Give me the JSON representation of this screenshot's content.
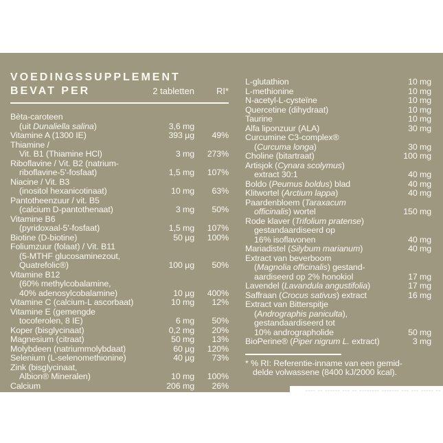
{
  "header": {
    "title_line1": "VOEDINGSSUPPLEMENT",
    "title_line2": "BEVAT PER",
    "col_amount": "2 tabletten",
    "col_ri": "RI*"
  },
  "left_rows": [
    {
      "lines": [
        "Bèta-caroteen",
        "(uit *Dunaliella salina*)"
      ],
      "amount": "3,6 mg",
      "ri": ""
    },
    {
      "lines": [
        "Vitamine A (1300 IE)"
      ],
      "amount": "393 µg",
      "ri": "49%"
    },
    {
      "lines": [
        "Thiamine /",
        "Vit. B1 (Thiamine HCl)"
      ],
      "amount": "3 mg",
      "ri": "273%"
    },
    {
      "lines": [
        "Riboflavine / Vit. B2 (natrium-",
        "riboflavine-5'-fosfaat)"
      ],
      "amount": "1,5 mg",
      "ri": "107%"
    },
    {
      "lines": [
        "Niacine / Vit. B3",
        "(inositol hexanicotinaat)"
      ],
      "amount": "10 mg",
      "ri": "63%"
    },
    {
      "lines": [
        "Pantotheenzuur / vit. B5",
        "(calcium D-pantothenaat)"
      ],
      "amount": "3 mg",
      "ri": "50%"
    },
    {
      "lines": [
        "Vitamine B6",
        "(pyridoxaal-5'-fosfaat)"
      ],
      "amount": "1,5 mg",
      "ri": "107%"
    },
    {
      "lines": [
        "Biotine (D-biotine)"
      ],
      "amount": "50 µg",
      "ri": "100%"
    },
    {
      "lines": [
        "Foliumzuur (folaat) / Vit. B11",
        "(5-MTHF glucosaminezout,",
        "Quatrefolic®)"
      ],
      "amount": "100 µg",
      "ri": "50%"
    },
    {
      "lines": [
        "Vitamine B12",
        "(60% methylcobalamine,",
        "40% adenosylcobalamine)"
      ],
      "amount": "10 µg",
      "ri": "400%"
    },
    {
      "lines": [
        "Vitamine C (calcium-L ascorbaat)"
      ],
      "amount": "10 mg",
      "ri": "12%"
    },
    {
      "lines": [
        "Vitamine E (gemengde",
        "tocoferolen, 8 IE)"
      ],
      "amount": "6 mg",
      "ri": "50%"
    },
    {
      "lines": [
        "Koper (bisglycinaat)"
      ],
      "amount": "0,2 mg",
      "ri": "20%"
    },
    {
      "lines": [
        "Magnesium (citraat)"
      ],
      "amount": "50 mg",
      "ri": "13%"
    },
    {
      "lines": [
        "Molybdeen (natriummolybdaat)"
      ],
      "amount": "60 µg",
      "ri": "120%"
    },
    {
      "lines": [
        "Selenium (L-selenomethionine)"
      ],
      "amount": "40 µg",
      "ri": "73%"
    },
    {
      "lines": [
        "Zink (bisglycinaat,",
        "Albion® Mineralen)"
      ],
      "amount": "10 mg",
      "ri": "100%"
    },
    {
      "lines": [
        "Calcium"
      ],
      "amount": "206 mg",
      "ri": "26%"
    }
  ],
  "right_rows": [
    {
      "lines": [
        "L-glutathion"
      ],
      "amount": "10 mg"
    },
    {
      "lines": [
        "L-methionine"
      ],
      "amount": "10 mg"
    },
    {
      "lines": [
        "N-acetyl-L-cysteïne"
      ],
      "amount": "10 mg"
    },
    {
      "lines": [
        "Quercetine (dihydraat)"
      ],
      "amount": "10 mg"
    },
    {
      "lines": [
        "Taurine"
      ],
      "amount": "10 mg"
    },
    {
      "lines": [
        "Alfa liponzuur (ALA)"
      ],
      "amount": "30 mg"
    },
    {
      "lines": [
        "Curcumine C3-complex®",
        "(*Curcuma longa*)"
      ],
      "amount": "30 mg"
    },
    {
      "lines": [
        "Choline (bitartraat)"
      ],
      "amount": "100 mg"
    },
    {
      "lines": [
        "Artisjok (*Cynara scolymus*)",
        "extract 30:1"
      ],
      "amount": "40 mg"
    },
    {
      "lines": [
        "Boldo (*Peumus boldus*) blad"
      ],
      "amount": "40 mg"
    },
    {
      "lines": [
        "Klitwortel (*Arctium lappa*)"
      ],
      "amount": "40 mg"
    },
    {
      "lines": [
        "Paardenbloem (*Taraxacum*",
        "*officinalis*) wortel"
      ],
      "amount": "150 mg"
    },
    {
      "lines": [
        "Rode klaver (*Trifolium pratense*)",
        "gestandaardiseerd op",
        "16% isoflavonen"
      ],
      "amount": "40 mg"
    },
    {
      "lines": [
        "Mariadistel (*Silybum marianum*)"
      ],
      "amount": "40 mg"
    },
    {
      "lines": [
        "Extract van beverboom",
        "(*Magnolia officinalis*) gestand-",
        "aardiseerd op 2% honokiol"
      ],
      "amount": "17 mg"
    },
    {
      "lines": [
        "Lavendel (*Lavandula angustifolia*)"
      ],
      "amount": "17 mg"
    },
    {
      "lines": [
        "Saffraan (*Crocus sativus*) extract"
      ],
      "amount": "16 mg"
    },
    {
      "lines": [
        "Extract van Bitterspitje",
        "(*Andrographis paniculta*),",
        "gestandaardiseerd tot",
        "10% andrographolide"
      ],
      "amount": "50 mg"
    },
    {
      "lines": [
        "BioPerine® (*Piper nigrum L.* extract)"
      ],
      "amount": "3 mg"
    }
  ],
  "footnote": {
    "line1": "* % RI: Referentie-inname van een gemid-",
    "line2": "delde volwassene (8400 kJ/2000 kcal)."
  },
  "cutoff_text": "---- -- ------ --- -- -------- ------- --- --- ----- -- ---- ----",
  "colors": {
    "panel_background": "#9E9881",
    "text": "#FBFAF1",
    "page_background": "#FFFFFF"
  }
}
